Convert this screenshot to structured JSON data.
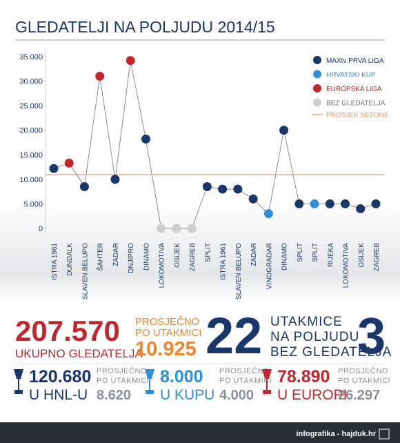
{
  "chart_data": {
    "type": "line",
    "title": "GLEDATELJI NA POLJUDU 2014/15",
    "categories": [
      "ISTRA 1961",
      "DUNDALK",
      "SLAVEN BELUPO",
      "ŠAHTER",
      "ZADAR",
      "DNJIPRO",
      "DINAMO",
      "LOKOMOTIVA",
      "OSIJEK",
      "ZAGREB",
      "SPLIT",
      "ISTRA 1961",
      "SLAVEN BELUPO",
      "ZADAR",
      "VINOGRADAR",
      "DINAMO",
      "SPLIT",
      "SPLIT",
      "RIJEKA",
      "LOKOMOTIVA",
      "OSIJEK",
      "ZAGREB"
    ],
    "series": [
      {
        "name": "MAXtv PRVA LIGA",
        "color": "#1b3668",
        "values": [
          12200,
          null,
          8500,
          null,
          10000,
          null,
          18200,
          null,
          null,
          null,
          8500,
          8000,
          8000,
          6000,
          null,
          20000,
          5000,
          null,
          5000,
          5000,
          4000,
          5000
        ]
      },
      {
        "name": "HRVATSKI KUP",
        "color": "#2f8fd8",
        "values": [
          null,
          null,
          null,
          null,
          null,
          null,
          null,
          null,
          null,
          null,
          null,
          null,
          null,
          null,
          3000,
          null,
          null,
          5000,
          null,
          null,
          null,
          null
        ]
      },
      {
        "name": "EUROPSKA LIGA",
        "color": "#c0282d",
        "values": [
          null,
          13300,
          null,
          31000,
          null,
          34200,
          null,
          null,
          null,
          null,
          null,
          null,
          null,
          null,
          null,
          null,
          null,
          null,
          null,
          null,
          null,
          null
        ]
      },
      {
        "name": "BEZ GLEDATELJA",
        "color": "#cfcfcf",
        "values": [
          null,
          null,
          null,
          null,
          null,
          null,
          null,
          0,
          0,
          0,
          null,
          null,
          null,
          null,
          null,
          null,
          null,
          null,
          null,
          null,
          null,
          null
        ]
      }
    ],
    "connector_color": "#8a8a8a",
    "average": {
      "name": "PROSJEK SEZONE",
      "value": 10925,
      "color": "#f0955a"
    },
    "ylim": [
      0,
      35000
    ],
    "yticks": [
      0,
      {
        "value": 5000,
        "label": "5.000"
      },
      {
        "value": 10000,
        "label": "10.000"
      },
      {
        "value": 15000,
        "label": "15.000"
      },
      {
        "value": 20000,
        "label": "20.000"
      },
      {
        "value": 25000,
        "label": "25.000"
      },
      {
        "value": 30000,
        "label": "30.000"
      },
      {
        "value": 35000,
        "label": "35.000"
      }
    ],
    "legend": "top-right"
  },
  "summary": {
    "total": {
      "value": "207.570",
      "label": "UKUPNO GLEDATELJA"
    },
    "average": {
      "label_1": "PROSJEČNO",
      "label_2": "PO UTAKMICI",
      "value": "10.925"
    },
    "matches": {
      "count": "22",
      "lines": [
        "UTAKMICE",
        "NA POLJUDU",
        "BEZ GLEDATELJA"
      ],
      "empty": "3"
    },
    "competitions": [
      {
        "value": "120.680",
        "label": "U HNL-U",
        "avg_label_1": "PROSJEČNO",
        "avg_label_2": "PO UTAKMICI",
        "avg": "8.620",
        "color": "#1b3668"
      },
      {
        "value": "8.000",
        "label": "U KUPU",
        "avg_label_1": "PROSJEČNO",
        "avg_label_2": "PO UTAKMICI",
        "avg": "4.000",
        "color": "#2f8fd8"
      },
      {
        "value": "78.890",
        "label": "U EUROPI",
        "avg_label_1": "PROSJEČNO",
        "avg_label_2": "PO UTAKMICI",
        "avg": "26.297",
        "color": "#c0282d"
      }
    ]
  },
  "footer": "infografika - hajduk.hr"
}
